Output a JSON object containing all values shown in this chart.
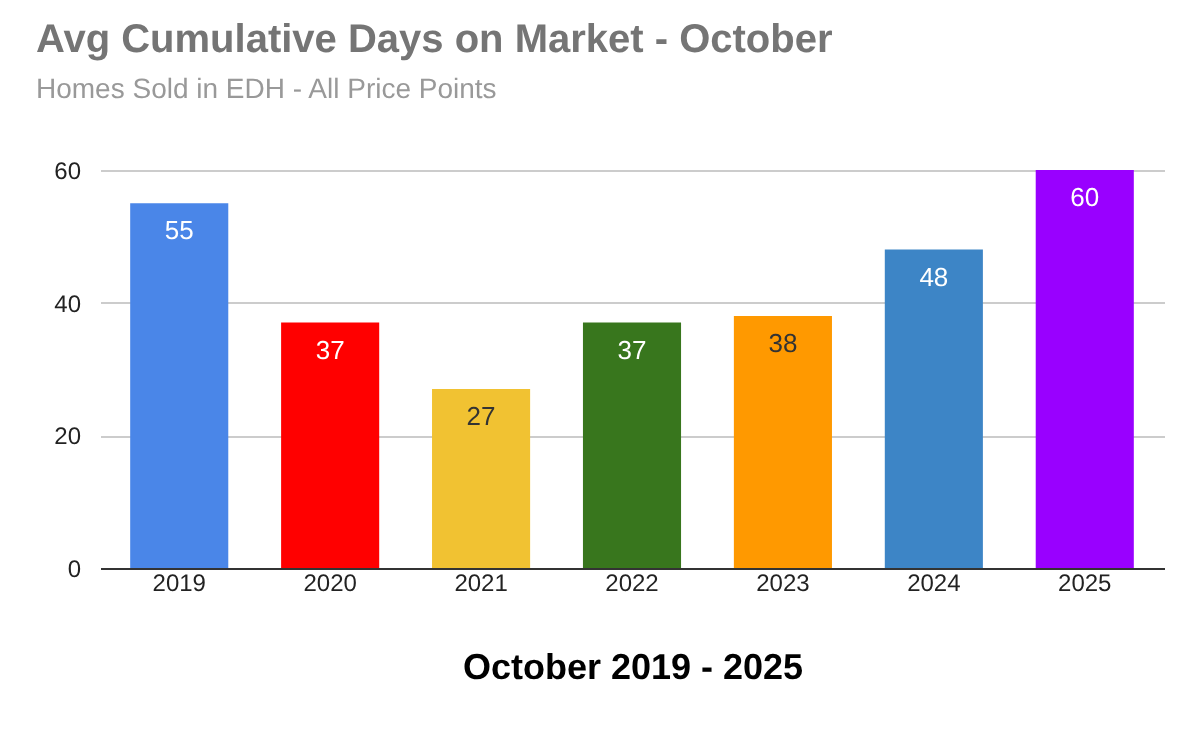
{
  "chart_data": {
    "type": "bar",
    "title": "Avg Cumulative Days on Market - October",
    "subtitle": "Homes Sold in EDH - All Price Points",
    "xlabel": "October 2019 - 2025",
    "categories": [
      "2019",
      "2020",
      "2021",
      "2022",
      "2023",
      "2024",
      "2025"
    ],
    "values": [
      55,
      37,
      27,
      37,
      38,
      48,
      60
    ],
    "colors": [
      "#4a86e8",
      "#ff0000",
      "#f1c232",
      "#38761d",
      "#ff9900",
      "#3d85c6",
      "#9900ff"
    ],
    "ylim": [
      0,
      60
    ],
    "yticks": [
      0,
      20,
      40,
      60
    ],
    "grid": "y",
    "data_labels": true
  }
}
